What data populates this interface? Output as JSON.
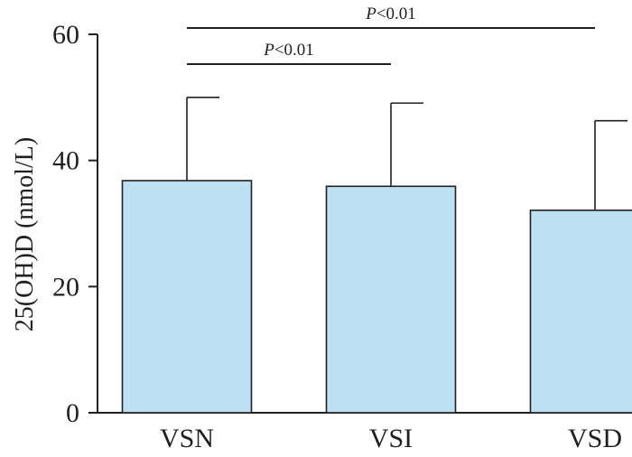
{
  "chart_data": {
    "type": "bar",
    "categories": [
      "VSN",
      "VSI",
      "VSD"
    ],
    "values": [
      36.8,
      35.9,
      32.1
    ],
    "error_upper": [
      50.0,
      49.1,
      46.3
    ],
    "ylabel": "25(OH)D (nmol/L)",
    "xlabel": "",
    "ylim": [
      0,
      60
    ],
    "yticks": [
      0,
      20,
      40,
      60
    ],
    "bar_color": "#bde0f2",
    "edge_color": "#231f20",
    "grid": false,
    "significance": [
      {
        "from": "VSN",
        "to": "VSI",
        "p_prefix": "P",
        "p_rest": "<0.01"
      },
      {
        "from": "VSN",
        "to": "VSD",
        "p_prefix": "P",
        "p_rest": "<0.01"
      }
    ]
  }
}
